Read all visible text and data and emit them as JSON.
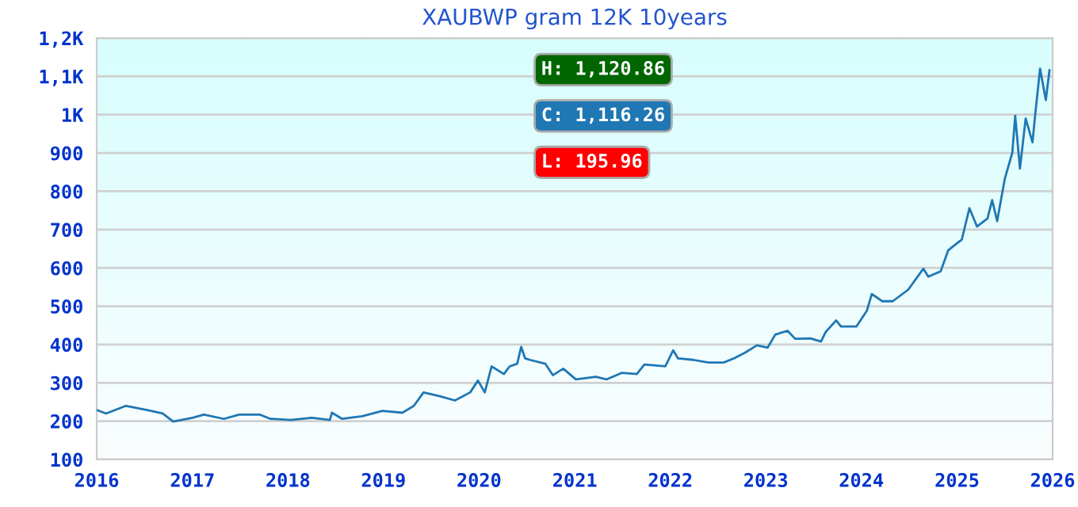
{
  "chart_data": {
    "type": "line",
    "title": "XAUBWP gram 12K 10years",
    "x": [
      "2016-01-01",
      "2016-02-06",
      "2016-04-22",
      "2016-07-12",
      "2016-09-09",
      "2016-10-19",
      "2017-01-01",
      "2017-02-14",
      "2017-05-01",
      "2017-06-28",
      "2017-09-16",
      "2017-10-26",
      "2018-01-12",
      "2018-04-02",
      "2018-06-10",
      "2018-06-18",
      "2018-07-27",
      "2018-10-12",
      "2018-12-28",
      "2019-03-14",
      "2019-04-27",
      "2019-06-03",
      "2019-08-04",
      "2019-10-01",
      "2019-11-28",
      "2019-12-28",
      "2020-01-23",
      "2020-02-18",
      "2020-04-05",
      "2020-04-27",
      "2020-05-26",
      "2020-06-10",
      "2020-06-25",
      "2020-07-13",
      "2020-09-10",
      "2020-10-09",
      "2020-11-18",
      "2021-01-05",
      "2021-03-23",
      "2021-05-02",
      "2021-06-29",
      "2021-08-26",
      "2021-09-24",
      "2021-12-13",
      "2022-01-12",
      "2022-01-30",
      "2022-03-29",
      "2022-05-27",
      "2022-07-24",
      "2022-09-02",
      "2022-10-12",
      "2022-11-28",
      "2023-01-08",
      "2023-02-06",
      "2023-03-25",
      "2023-04-23",
      "2023-06-20",
      "2023-07-31",
      "2023-08-18",
      "2023-09-27",
      "2023-10-15",
      "2023-12-13",
      "2024-01-22",
      "2024-02-10",
      "2024-03-21",
      "2024-04-30",
      "2024-06-28",
      "2024-08-25",
      "2024-09-13",
      "2024-10-30",
      "2024-11-28",
      "2025-01-19",
      "2025-02-17",
      "2025-03-18",
      "2025-04-27",
      "2025-05-15",
      "2025-06-03",
      "2025-07-02",
      "2025-07-31",
      "2025-08-11",
      "2025-08-29",
      "2025-09-20",
      "2025-10-16",
      "2025-10-27",
      "2025-11-14",
      "2025-12-06",
      "2025-12-20"
    ],
    "series": [
      {
        "color": "#1f77b4",
        "values": [
          229,
          220,
          240,
          229,
          220,
          199,
          209,
          217,
          206,
          217,
          217,
          206,
          203,
          209,
          203,
          222,
          206,
          213,
          227,
          222,
          240,
          275,
          265,
          254,
          275,
          306,
          275,
          343,
          323,
          343,
          350,
          394,
          364,
          360,
          350,
          320,
          337,
          309,
          316,
          309,
          326,
          323,
          348,
          343,
          385,
          364,
          360,
          353,
          353,
          364,
          378,
          398,
          392,
          426,
          436,
          415,
          416,
          408,
          433,
          463,
          447,
          447,
          488,
          532,
          513,
          513,
          543,
          598,
          577,
          591,
          646,
          674,
          756,
          708,
          729,
          777,
          722,
          832,
          901,
          997,
          859,
          990,
          928,
          1004,
          1120,
          1038,
          1116
        ]
      }
    ],
    "xlim": [
      "2016-01-01",
      "2026-01-01"
    ],
    "xticks": [
      {
        "value": "2016-01-01",
        "label": "2016"
      },
      {
        "value": "2017-01-01",
        "label": "2017"
      },
      {
        "value": "2018-01-01",
        "label": "2018"
      },
      {
        "value": "2019-01-01",
        "label": "2019"
      },
      {
        "value": "2020-01-01",
        "label": "2020"
      },
      {
        "value": "2021-01-01",
        "label": "2021"
      },
      {
        "value": "2022-01-01",
        "label": "2022"
      },
      {
        "value": "2023-01-01",
        "label": "2023"
      },
      {
        "value": "2024-01-01",
        "label": "2024"
      },
      {
        "value": "2025-01-01",
        "label": "2025"
      },
      {
        "value": "2026-01-01",
        "label": "2026"
      }
    ],
    "ylim": [
      100,
      1200
    ],
    "yticks": [
      100,
      200,
      300,
      400,
      500,
      600,
      700,
      800,
      900,
      {
        "value": 1000,
        "label": "1K"
      },
      {
        "value": 1100,
        "label": "1,1K"
      },
      {
        "value": 1200,
        "label": "1,2K"
      }
    ],
    "grid": "y",
    "annotations": [
      "H: 1,120.86",
      "C: 1,116.26",
      "L: 195.96"
    ]
  }
}
